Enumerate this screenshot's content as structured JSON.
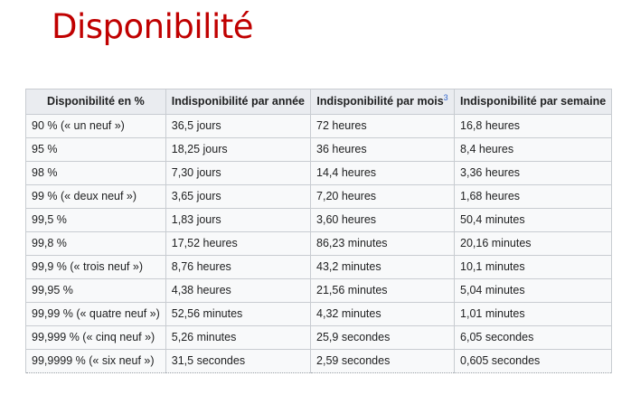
{
  "title": "Disponibilité",
  "table": {
    "headers": [
      "Disponibilité en %",
      "Indisponibilité par année",
      "Indisponibilité par mois",
      "Indisponibilité par semaine"
    ],
    "header_note": "3",
    "rows": [
      [
        "90 % (« un neuf »)",
        "36,5 jours",
        "72 heures",
        "16,8 heures"
      ],
      [
        "95 %",
        "18,25 jours",
        "36 heures",
        "8,4 heures"
      ],
      [
        "98 %",
        "7,30 jours",
        "14,4 heures",
        "3,36 heures"
      ],
      [
        "99 % (« deux neuf »)",
        "3,65 jours",
        "7,20 heures",
        "1,68 heures"
      ],
      [
        "99,5 %",
        "1,83 jours",
        "3,60 heures",
        "50,4 minutes"
      ],
      [
        "99,8 %",
        "17,52 heures",
        "86,23 minutes",
        "20,16 minutes"
      ],
      [
        "99,9 % (« trois neuf »)",
        "8,76 heures",
        "43,2 minutes",
        "10,1 minutes"
      ],
      [
        "99,95 %",
        "4,38 heures",
        "21,56 minutes",
        "5,04 minutes"
      ],
      [
        "99,99 % (« quatre neuf »)",
        "52,56 minutes",
        "4,32 minutes",
        "1,01 minutes"
      ],
      [
        "99,999 % (« cinq neuf »)",
        "5,26 minutes",
        "25,9 secondes",
        "6,05 secondes"
      ],
      [
        "99,9999 % (« six neuf »)",
        "31,5 secondes",
        "2,59 secondes",
        "0,605 secondes"
      ]
    ]
  }
}
